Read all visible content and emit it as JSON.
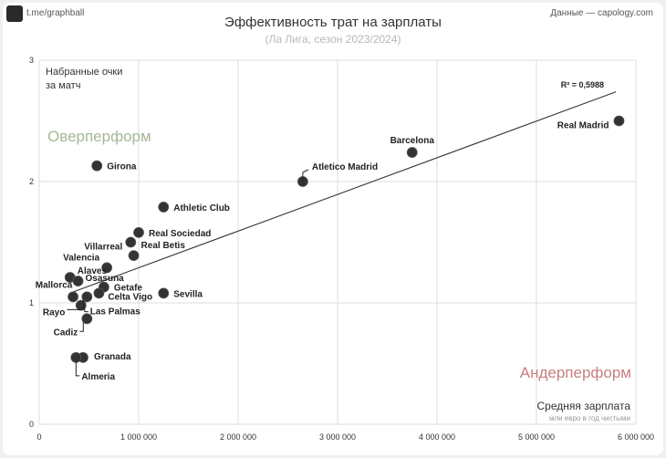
{
  "header": {
    "handle": "t.me/graphball",
    "source": "Данные — capology.com",
    "title": "Эффективность трат на зарплаты",
    "subtitle": "(Ла Лига, сезон 2023/2024)"
  },
  "colors": {
    "point": "#333333",
    "grid": "#dddddd",
    "over": "#a6b894",
    "under": "#c77f7f",
    "line": "#333333"
  },
  "chart_data": {
    "type": "scatter",
    "ylabel_lines": [
      "Набранные очки",
      "за матч"
    ],
    "xlabel": "Средняя зарплата",
    "xlabel_sub": "млн евро в год чистыми",
    "xlim": [
      0,
      6000000
    ],
    "ylim": [
      0,
      3
    ],
    "xticks": [
      0,
      1000000,
      2000000,
      3000000,
      4000000,
      5000000,
      6000000
    ],
    "xtick_labels": [
      "0",
      "1 000 000",
      "2 000 000",
      "3 000 000",
      "4 000 000",
      "5 000 000",
      "6 000 000"
    ],
    "yticks": [
      0,
      1,
      2,
      3
    ],
    "ytick_labels": [
      "0",
      "1",
      "2",
      "3"
    ],
    "grid": true,
    "region_labels": {
      "over": "Оверперформ",
      "under": "Андерперформ"
    },
    "trendline": {
      "x": [
        340000,
        5800000
      ],
      "y": [
        1.09,
        2.74
      ],
      "r2_label": "R² = 0,5988"
    },
    "points": [
      {
        "label": "Real Madrid",
        "x": 5830000,
        "y": 2.5
      },
      {
        "label": "Barcelona",
        "x": 3750000,
        "y": 2.24
      },
      {
        "label": "Atletico Madrid",
        "x": 2650000,
        "y": 2.0
      },
      {
        "label": "Girona",
        "x": 580000,
        "y": 2.13
      },
      {
        "label": "Athletic Club",
        "x": 1250000,
        "y": 1.79
      },
      {
        "label": "Real Sociedad",
        "x": 1000000,
        "y": 1.58
      },
      {
        "label": "Real Betis",
        "x": 950000,
        "y": 1.39
      },
      {
        "label": "Villarreal",
        "x": 920000,
        "y": 1.5
      },
      {
        "label": "Valencia",
        "x": 680000,
        "y": 1.29
      },
      {
        "label": "Alaves",
        "x": 310000,
        "y": 1.21
      },
      {
        "label": "Osasuna",
        "x": 390000,
        "y": 1.18
      },
      {
        "label": "Getafe",
        "x": 650000,
        "y": 1.13
      },
      {
        "label": "Celta Vigo",
        "x": 600000,
        "y": 1.08
      },
      {
        "label": "Sevilla",
        "x": 1250000,
        "y": 1.08
      },
      {
        "label": "Mallorca",
        "x": 340000,
        "y": 1.05
      },
      {
        "label": "Rayo",
        "x": 480000,
        "y": 1.05
      },
      {
        "label": "Las Palmas",
        "x": 420000,
        "y": 0.98
      },
      {
        "label": "Cadiz",
        "x": 480000,
        "y": 0.87
      },
      {
        "label": "Granada",
        "x": 440000,
        "y": 0.55
      },
      {
        "label": "Almeria",
        "x": 370000,
        "y": 0.55
      }
    ]
  }
}
